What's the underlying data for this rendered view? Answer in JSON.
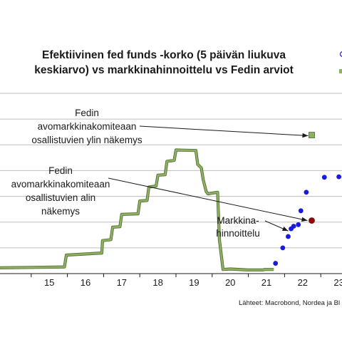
{
  "chart_data": {
    "type": "line",
    "title": [
      "Efektiivinen fed funds -korko (5 päivän liukuva",
      "keskiarvo) vs markkinahinnoittelu vs Fedin arviot"
    ],
    "source": "Lähteet: Macrobond, Nordea ja Bl",
    "x_ticks": [
      "15",
      "16",
      "17",
      "18",
      "19",
      "20",
      "21",
      "22",
      "23"
    ],
    "xlim": [
      2014.0,
      2024.0
    ],
    "ylim": [
      0,
      3.5
    ],
    "gridlines": [
      0.5,
      1.0,
      1.5,
      2.0,
      2.5,
      3.0,
      3.5
    ],
    "colors": {
      "line": "#8db061",
      "line_dark": "#4e6a30",
      "market": "#1a1adf",
      "fed_high": "#8db061",
      "fed_low": "#8b0a0a",
      "grid": "#bdbdbd"
    },
    "series": [
      {
        "type": "line",
        "x": [
          2014.0,
          2015.0,
          2015.92,
          2015.97,
          2016.95,
          2016.97,
          2017.2,
          2017.25,
          2017.45,
          2017.5,
          2017.95,
          2018.0,
          2018.2,
          2018.25,
          2018.45,
          2018.5,
          2018.7,
          2018.75,
          2018.95,
          2019.0,
          2019.55,
          2019.6,
          2019.7,
          2019.75,
          2019.83,
          2019.88,
          2020.15,
          2020.2,
          2020.3,
          2020.5,
          2021.0,
          2021.4,
          2021.45,
          2021.7
        ],
        "y": [
          0.11,
          0.12,
          0.13,
          0.36,
          0.4,
          0.64,
          0.66,
          0.9,
          0.91,
          1.15,
          1.16,
          1.41,
          1.42,
          1.68,
          1.7,
          1.91,
          1.92,
          2.18,
          2.2,
          2.4,
          2.39,
          2.12,
          2.05,
          1.83,
          1.6,
          1.55,
          1.58,
          0.65,
          0.08,
          0.09,
          0.07,
          0.07,
          0.08,
          0.08
        ]
      },
      {
        "type": "scatter",
        "x": [
          2021.75,
          2021.95,
          2022.1,
          2022.18,
          2022.25,
          2022.38,
          2022.45,
          2022.6,
          2023.1,
          2023.5
        ],
        "y": [
          0.2,
          0.5,
          0.72,
          0.87,
          0.92,
          0.95,
          1.22,
          1.58,
          1.87,
          1.88
        ]
      },
      {
        "type": "scatter",
        "x": [
          2022.75
        ],
        "y": [
          2.69
        ]
      },
      {
        "type": "scatter",
        "x": [
          2022.75
        ],
        "y": [
          1.03
        ]
      }
    ],
    "annotations": [
      {
        "lines": [
          "Fedin",
          "avomarkkinakomiteaan",
          "osallistuvien ylin näkemys"
        ]
      },
      {
        "lines": [
          "Fedin",
          "avomarkkinakomiteaan",
          "osallistuvien alin",
          "näkemys"
        ]
      },
      {
        "lines": [
          "Markkina-",
          "hinnoittelu"
        ]
      }
    ]
  }
}
